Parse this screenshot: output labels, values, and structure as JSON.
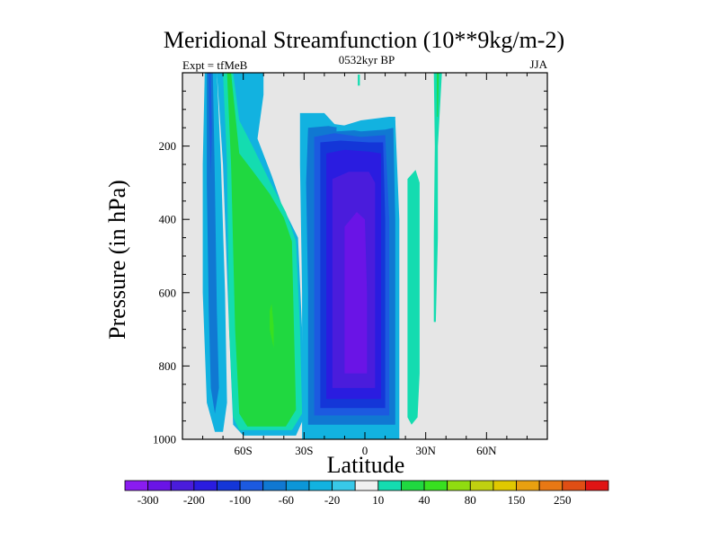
{
  "chart_data": {
    "type": "contour",
    "title": "Meridional Streamfunction (10**9kg/m-2)",
    "left_string": "Expt = tfMeB",
    "center_string": "0532kyr BP",
    "right_string": "JJA",
    "xlabel": "Latitude",
    "ylabel": "Pressure (in hPa)",
    "xlim": [
      -90,
      90
    ],
    "ylim": [
      1000,
      0
    ],
    "x_ticks": [
      {
        "value": -60,
        "label": "60S"
      },
      {
        "value": -30,
        "label": "30S"
      },
      {
        "value": 0,
        "label": "0"
      },
      {
        "value": 30,
        "label": "30N"
      },
      {
        "value": 60,
        "label": "60N"
      }
    ],
    "y_ticks": [
      {
        "value": 200,
        "label": "200"
      },
      {
        "value": 400,
        "label": "400"
      },
      {
        "value": 600,
        "label": "600"
      },
      {
        "value": 800,
        "label": "800"
      },
      {
        "value": 1000,
        "label": "1000"
      }
    ],
    "missing_fill": "#e6e6e6",
    "colorbar": {
      "colors": [
        "#8a1cf0",
        "#6a14e6",
        "#4a1cdc",
        "#2a1ce0",
        "#1436d8",
        "#1c5ae0",
        "#1078d2",
        "#0c96d8",
        "#12b2e0",
        "#38c8e8",
        "#f0f0f0",
        "#14dcb0",
        "#20d840",
        "#38e020",
        "#90dc10",
        "#c0d010",
        "#e0c800",
        "#e8a010",
        "#e87814",
        "#e04e14",
        "#e01414"
      ],
      "labels": [
        {
          "after_index": 0,
          "text": "-300"
        },
        {
          "after_index": 2,
          "text": "-200"
        },
        {
          "after_index": 4,
          "text": "-100"
        },
        {
          "after_index": 6,
          "text": "-60"
        },
        {
          "after_index": 8,
          "text": "-20"
        },
        {
          "after_index": 10,
          "text": "10"
        },
        {
          "after_index": 12,
          "text": "40"
        },
        {
          "after_index": 14,
          "text": "80"
        },
        {
          "after_index": 16,
          "text": "150"
        },
        {
          "after_index": 18,
          "text": "250"
        }
      ]
    },
    "contours": [
      {
        "name": "sh-polar-cell-outer",
        "level": -20,
        "color": "#12b2e0",
        "poly": [
          [
            -79,
            0
          ],
          [
            -73,
            0
          ],
          [
            -71,
            250
          ],
          [
            -69,
            600
          ],
          [
            -68,
            900
          ],
          [
            -70,
            980
          ],
          [
            -74,
            980
          ],
          [
            -78,
            900
          ],
          [
            -80,
            600
          ],
          [
            -80,
            250
          ]
        ]
      },
      {
        "name": "sh-polar-cell-mid",
        "level": -60,
        "color": "#1078d2",
        "poly": [
          [
            -78,
            0
          ],
          [
            -75,
            0
          ],
          [
            -74,
            300
          ],
          [
            -73,
            650
          ],
          [
            -72,
            860
          ],
          [
            -74,
            930
          ],
          [
            -76,
            860
          ],
          [
            -77,
            650
          ],
          [
            -78,
            300
          ]
        ]
      },
      {
        "name": "sh-polar-cell-core",
        "level": -100,
        "color": "#1c5ae0",
        "poly": [
          [
            -77,
            0
          ],
          [
            -76,
            0
          ],
          [
            -75.5,
            150
          ],
          [
            -76,
            280
          ],
          [
            -76.6,
            150
          ]
        ]
      },
      {
        "name": "sh-ferrel-outer",
        "level": -20,
        "color": "#12b2e0",
        "poly": [
          [
            -73,
            0
          ],
          [
            -58,
            0
          ],
          [
            -50,
            0
          ],
          [
            -50,
            60
          ],
          [
            -53,
            180
          ],
          [
            -46,
            280
          ],
          [
            -41,
            360
          ],
          [
            -33,
            450
          ],
          [
            -31,
            700
          ],
          [
            -30,
            940
          ],
          [
            -34,
            990
          ],
          [
            -60,
            990
          ],
          [
            -65,
            960
          ],
          [
            -67,
            700
          ],
          [
            -70,
            250
          ]
        ]
      },
      {
        "name": "sh-ferrel-10",
        "level": 10,
        "color": "#14dcb0",
        "poly": [
          [
            -70,
            0
          ],
          [
            -65,
            0
          ],
          [
            -62,
            130
          ],
          [
            -55,
            205
          ],
          [
            -47,
            295
          ],
          [
            -39,
            380
          ],
          [
            -34,
            460
          ],
          [
            -32,
            700
          ],
          [
            -31,
            930
          ],
          [
            -36,
            975
          ],
          [
            -62,
            975
          ],
          [
            -65,
            940
          ],
          [
            -67,
            700
          ],
          [
            -68,
            250
          ]
        ]
      },
      {
        "name": "sh-ferrel-40",
        "level": 40,
        "color": "#20d840",
        "poly": [
          [
            -68,
            0
          ],
          [
            -66,
            0
          ],
          [
            -62,
            220
          ],
          [
            -55,
            270
          ],
          [
            -47,
            330
          ],
          [
            -40,
            395
          ],
          [
            -36,
            460
          ],
          [
            -35,
            700
          ],
          [
            -34,
            920
          ],
          [
            -39,
            965
          ],
          [
            -58,
            965
          ],
          [
            -62,
            930
          ],
          [
            -64,
            700
          ],
          [
            -66,
            250
          ]
        ]
      },
      {
        "name": "sh-ferrel-core",
        "level": 80,
        "color": "#38e020",
        "poly": [
          [
            -46,
            630
          ],
          [
            -45,
            690
          ],
          [
            -45,
            750
          ],
          [
            -47,
            700
          ],
          [
            -47,
            650
          ]
        ]
      },
      {
        "name": "hadley-m20",
        "level": -20,
        "color": "#12b2e0",
        "poly": [
          [
            -32,
            110
          ],
          [
            -20,
            110
          ],
          [
            -15,
            140
          ],
          [
            -2,
            150
          ],
          [
            8,
            140
          ],
          [
            15,
            130
          ],
          [
            17,
            400
          ],
          [
            17,
            1000
          ],
          [
            -31,
            1000
          ],
          [
            -31,
            600
          ],
          [
            -32,
            250
          ]
        ]
      },
      {
        "name": "hadley-m60",
        "level": -60,
        "color": "#1078d2",
        "poly": [
          [
            -28,
            150
          ],
          [
            -18,
            145
          ],
          [
            -2,
            160
          ],
          [
            10,
            155
          ],
          [
            14,
            150
          ],
          [
            15,
            400
          ],
          [
            15,
            960
          ],
          [
            -28,
            960
          ],
          [
            -28,
            600
          ],
          [
            -29,
            300
          ]
        ]
      },
      {
        "name": "hadley-m100",
        "level": -100,
        "color": "#1c5ae0",
        "poly": [
          [
            -25,
            175
          ],
          [
            -15,
            165
          ],
          [
            -2,
            175
          ],
          [
            10,
            170
          ],
          [
            12,
            400
          ],
          [
            12,
            935
          ],
          [
            -25,
            935
          ],
          [
            -25,
            600
          ]
        ]
      },
      {
        "name": "hadley-m150",
        "level": -150,
        "color": "#1436d8",
        "poly": [
          [
            -22,
            190
          ],
          [
            -12,
            185
          ],
          [
            2,
            190
          ],
          [
            9,
            190
          ],
          [
            10,
            400
          ],
          [
            10,
            915
          ],
          [
            -22,
            915
          ],
          [
            -22,
            600
          ]
        ]
      },
      {
        "name": "hadley-m200",
        "level": -200,
        "color": "#2a1ce0",
        "poly": [
          [
            -19,
            220
          ],
          [
            -10,
            210
          ],
          [
            2,
            215
          ],
          [
            8,
            220
          ],
          [
            8,
            400
          ],
          [
            8,
            890
          ],
          [
            -19,
            890
          ],
          [
            -19,
            600
          ]
        ]
      },
      {
        "name": "hadley-m250",
        "level": -250,
        "color": "#4a1cdc",
        "poly": [
          [
            -16,
            290
          ],
          [
            -8,
            270
          ],
          [
            2,
            270
          ],
          [
            5,
            300
          ],
          [
            5,
            400
          ],
          [
            5,
            860
          ],
          [
            -16,
            860
          ],
          [
            -16,
            600
          ]
        ]
      },
      {
        "name": "hadley-core",
        "level": -300,
        "color": "#6a14e6",
        "poly": [
          [
            -10,
            420
          ],
          [
            -4,
            380
          ],
          [
            0,
            400
          ],
          [
            1,
            600
          ],
          [
            1,
            820
          ],
          [
            -10,
            820
          ],
          [
            -10,
            600
          ]
        ]
      },
      {
        "name": "hadley-upper-shelf",
        "level": -20,
        "color": "#12b2e0",
        "poly": [
          [
            -14,
            150
          ],
          [
            -2,
            130
          ],
          [
            12,
            120
          ],
          [
            15,
            120
          ],
          [
            15,
            150
          ],
          [
            -14,
            160
          ]
        ]
      },
      {
        "name": "equator-sliver",
        "level": 10,
        "color": "#14dcb0",
        "poly": [
          [
            -3.5,
            5
          ],
          [
            -2.5,
            5
          ],
          [
            -2.5,
            35
          ],
          [
            -3.5,
            35
          ]
        ]
      },
      {
        "name": "nh-ferrel-lower",
        "level": 10,
        "color": "#14dcb0",
        "poly": [
          [
            21,
            290
          ],
          [
            25,
            265
          ],
          [
            27,
            300
          ],
          [
            27,
            820
          ],
          [
            26,
            940
          ],
          [
            23,
            960
          ],
          [
            21,
            940
          ],
          [
            21,
            600
          ]
        ]
      },
      {
        "name": "nh-ferrel-upper",
        "level": 10,
        "color": "#14dcb0",
        "poly": [
          [
            34,
            0
          ],
          [
            38,
            0
          ],
          [
            36,
            200
          ],
          [
            36,
            450
          ],
          [
            35,
            680
          ],
          [
            34,
            680
          ],
          [
            34,
            450
          ],
          [
            34.5,
            200
          ]
        ]
      },
      {
        "name": "nh-ferrel-upper-core",
        "level": 40,
        "color": "#20d840",
        "poly": [
          [
            35.5,
            0
          ],
          [
            36.5,
            0
          ],
          [
            36,
            120
          ],
          [
            35.6,
            120
          ]
        ]
      }
    ]
  }
}
